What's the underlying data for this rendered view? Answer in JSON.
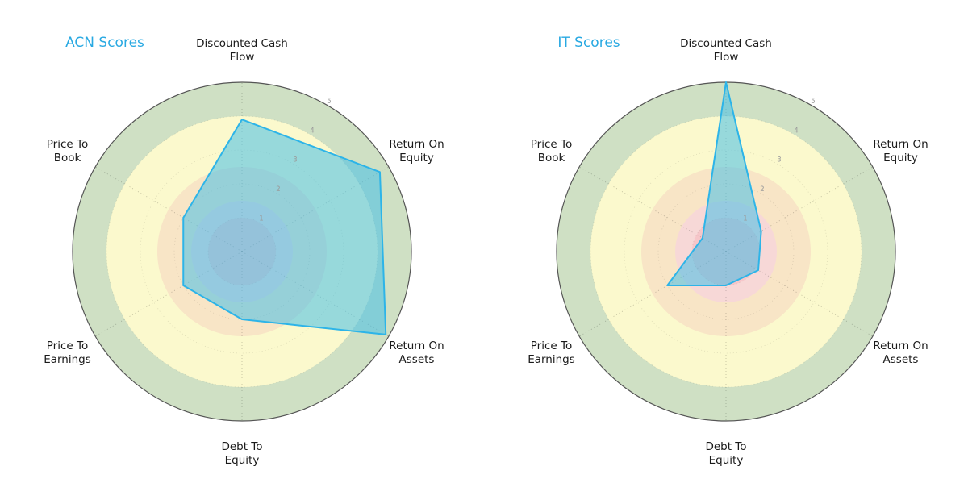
{
  "colors": {
    "title": "#29a9e2",
    "polygon_stroke": "#2db4e8",
    "polygon_fill": "#45c0e8",
    "polygon_fill_opacity": 0.55,
    "axis_label": "#1a1a1a",
    "tick_label": "#9a9a9a",
    "outer_ring": "#555555",
    "band_red": "#f6c6c9",
    "band_pink": "#f7d8d7",
    "band_orange": "#f8e5c6",
    "band_yellow": "#fbf9cd",
    "band_green": "#cfe0c4"
  },
  "bands": [
    {
      "from": 0,
      "to": 1,
      "color": "#f6c6c9"
    },
    {
      "from": 1,
      "to": 1.5,
      "color": "#f7d8d7"
    },
    {
      "from": 1.5,
      "to": 2.5,
      "color": "#f8e5c6"
    },
    {
      "from": 2.5,
      "to": 4,
      "color": "#fbf9cd"
    },
    {
      "from": 4,
      "to": 5,
      "color": "#cfe0c4"
    }
  ],
  "chart_data": [
    {
      "type": "radar",
      "title": "ACN Scores",
      "categories": [
        "Discounted Cash Flow",
        "Return On Equity",
        "Return On Assets",
        "Debt To Equity",
        "Price To Earnings",
        "Price To Book"
      ],
      "values": [
        3.9,
        4.7,
        4.9,
        2.0,
        2.0,
        2.0
      ],
      "max": 5,
      "ticks": [
        1,
        2,
        3,
        4,
        5
      ],
      "grid": "dotted",
      "legend": "none"
    },
    {
      "type": "radar",
      "title": "IT Scores",
      "categories": [
        "Discounted Cash Flow",
        "Return On Equity",
        "Return On Assets",
        "Debt To Equity",
        "Price To Earnings",
        "Price To Book"
      ],
      "values": [
        5.0,
        1.2,
        1.1,
        1.0,
        2.0,
        0.8
      ],
      "max": 5,
      "ticks": [
        1,
        2,
        3,
        4,
        5
      ],
      "grid": "dotted",
      "legend": "none"
    }
  ]
}
